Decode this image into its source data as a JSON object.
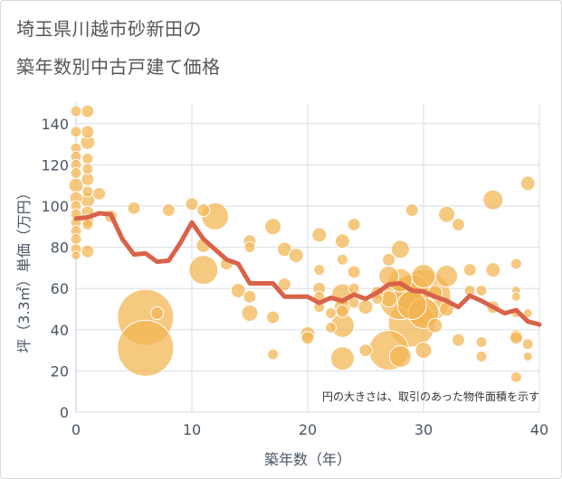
{
  "title": {
    "line1": "埼玉県川越市砂新田の",
    "line2": "築年数別中古戸建て価格"
  },
  "chart_data": {
    "type": "scatter",
    "title": "埼玉県川越市砂新田の築年数別中古戸建て価格",
    "xlabel": "築年数（年）",
    "ylabel": "坪（3.3㎡）単価（万円）",
    "annotation": "円の大きさは、取引のあった物件面積を示す",
    "xlim": [
      0,
      40
    ],
    "ylim": [
      0,
      150
    ],
    "x_ticks": [
      0,
      10,
      20,
      30,
      40
    ],
    "y_ticks": [
      0,
      20,
      40,
      60,
      80,
      100,
      120,
      140
    ],
    "grid": true,
    "colors": {
      "bubble": "#f2b450",
      "line": "#d9634a",
      "grid": "#d7dde3",
      "axis_text": "#4a5563"
    },
    "points": [
      {
        "x": 0,
        "y": 146,
        "s": 6
      },
      {
        "x": 0,
        "y": 136,
        "s": 6
      },
      {
        "x": 0,
        "y": 128,
        "s": 6
      },
      {
        "x": 0,
        "y": 124,
        "s": 6
      },
      {
        "x": 0,
        "y": 120,
        "s": 6
      },
      {
        "x": 0,
        "y": 116,
        "s": 6
      },
      {
        "x": 0,
        "y": 110,
        "s": 8
      },
      {
        "x": 0,
        "y": 104,
        "s": 7
      },
      {
        "x": 0,
        "y": 100,
        "s": 6
      },
      {
        "x": 0,
        "y": 96,
        "s": 6
      },
      {
        "x": 0,
        "y": 92,
        "s": 6
      },
      {
        "x": 0,
        "y": 88,
        "s": 6
      },
      {
        "x": 0,
        "y": 84,
        "s": 6
      },
      {
        "x": 0,
        "y": 79,
        "s": 6
      },
      {
        "x": 0,
        "y": 76,
        "s": 5
      },
      {
        "x": 1,
        "y": 146,
        "s": 7
      },
      {
        "x": 1,
        "y": 136,
        "s": 7
      },
      {
        "x": 1,
        "y": 131,
        "s": 8
      },
      {
        "x": 1,
        "y": 123,
        "s": 6
      },
      {
        "x": 1,
        "y": 118,
        "s": 6
      },
      {
        "x": 1,
        "y": 113,
        "s": 7
      },
      {
        "x": 1,
        "y": 107,
        "s": 6
      },
      {
        "x": 1,
        "y": 103,
        "s": 8
      },
      {
        "x": 1,
        "y": 97,
        "s": 7
      },
      {
        "x": 1,
        "y": 93,
        "s": 7
      },
      {
        "x": 1,
        "y": 91,
        "s": 6
      },
      {
        "x": 1,
        "y": 78,
        "s": 7
      },
      {
        "x": 2,
        "y": 106,
        "s": 7
      },
      {
        "x": 3,
        "y": 95,
        "s": 7
      },
      {
        "x": 5,
        "y": 99,
        "s": 7
      },
      {
        "x": 6,
        "y": 46,
        "s": 31
      },
      {
        "x": 6,
        "y": 31,
        "s": 31
      },
      {
        "x": 7,
        "y": 48,
        "s": 7
      },
      {
        "x": 8,
        "y": 98,
        "s": 7
      },
      {
        "x": 10,
        "y": 101,
        "s": 7
      },
      {
        "x": 11,
        "y": 98,
        "s": 7
      },
      {
        "x": 11,
        "y": 81,
        "s": 8
      },
      {
        "x": 11,
        "y": 69,
        "s": 16
      },
      {
        "x": 12,
        "y": 95,
        "s": 15
      },
      {
        "x": 13,
        "y": 72,
        "s": 7
      },
      {
        "x": 14,
        "y": 59,
        "s": 8
      },
      {
        "x": 15,
        "y": 83,
        "s": 7
      },
      {
        "x": 15,
        "y": 80,
        "s": 6
      },
      {
        "x": 15,
        "y": 56,
        "s": 7
      },
      {
        "x": 15,
        "y": 48,
        "s": 9
      },
      {
        "x": 17,
        "y": 90,
        "s": 9
      },
      {
        "x": 17,
        "y": 46,
        "s": 7
      },
      {
        "x": 17,
        "y": 28,
        "s": 6
      },
      {
        "x": 18,
        "y": 79,
        "s": 8
      },
      {
        "x": 18,
        "y": 62,
        "s": 7
      },
      {
        "x": 19,
        "y": 76,
        "s": 8
      },
      {
        "x": 20,
        "y": 38,
        "s": 8
      },
      {
        "x": 20,
        "y": 36,
        "s": 7
      },
      {
        "x": 21,
        "y": 86,
        "s": 8
      },
      {
        "x": 21,
        "y": 69,
        "s": 6
      },
      {
        "x": 21,
        "y": 60,
        "s": 7
      },
      {
        "x": 21,
        "y": 56,
        "s": 6
      },
      {
        "x": 21,
        "y": 51,
        "s": 6
      },
      {
        "x": 22,
        "y": 48,
        "s": 6
      },
      {
        "x": 22,
        "y": 41,
        "s": 6
      },
      {
        "x": 23,
        "y": 83,
        "s": 8
      },
      {
        "x": 23,
        "y": 74,
        "s": 6
      },
      {
        "x": 23,
        "y": 57,
        "s": 12
      },
      {
        "x": 23,
        "y": 51,
        "s": 9
      },
      {
        "x": 23,
        "y": 49,
        "s": 7
      },
      {
        "x": 23,
        "y": 42,
        "s": 13
      },
      {
        "x": 23,
        "y": 26,
        "s": 13
      },
      {
        "x": 24,
        "y": 91,
        "s": 7
      },
      {
        "x": 24,
        "y": 68,
        "s": 7
      },
      {
        "x": 24,
        "y": 60,
        "s": 6
      },
      {
        "x": 24,
        "y": 53,
        "s": 6
      },
      {
        "x": 25,
        "y": 51,
        "s": 8
      },
      {
        "x": 25,
        "y": 30,
        "s": 7
      },
      {
        "x": 26,
        "y": 58,
        "s": 7
      },
      {
        "x": 26,
        "y": 55,
        "s": 6
      },
      {
        "x": 27,
        "y": 74,
        "s": 7
      },
      {
        "x": 27,
        "y": 66,
        "s": 11
      },
      {
        "x": 27,
        "y": 55,
        "s": 9
      },
      {
        "x": 27,
        "y": 30,
        "s": 22
      },
      {
        "x": 28,
        "y": 79,
        "s": 10
      },
      {
        "x": 28,
        "y": 64,
        "s": 13
      },
      {
        "x": 28,
        "y": 55,
        "s": 23
      },
      {
        "x": 28,
        "y": 27,
        "s": 12
      },
      {
        "x": 29,
        "y": 98,
        "s": 7
      },
      {
        "x": 29,
        "y": 58,
        "s": 20
      },
      {
        "x": 29,
        "y": 52,
        "s": 16
      },
      {
        "x": 29,
        "y": 43,
        "s": 26
      },
      {
        "x": 30,
        "y": 66,
        "s": 13
      },
      {
        "x": 30,
        "y": 56,
        "s": 30
      },
      {
        "x": 30,
        "y": 48,
        "s": 17
      },
      {
        "x": 30,
        "y": 30,
        "s": 9
      },
      {
        "x": 31,
        "y": 58,
        "s": 8
      },
      {
        "x": 31,
        "y": 42,
        "s": 8
      },
      {
        "x": 32,
        "y": 96,
        "s": 9
      },
      {
        "x": 32,
        "y": 66,
        "s": 12
      },
      {
        "x": 32,
        "y": 50,
        "s": 8
      },
      {
        "x": 33,
        "y": 91,
        "s": 7
      },
      {
        "x": 33,
        "y": 35,
        "s": 7
      },
      {
        "x": 34,
        "y": 69,
        "s": 7
      },
      {
        "x": 34,
        "y": 59,
        "s": 6
      },
      {
        "x": 35,
        "y": 59,
        "s": 6
      },
      {
        "x": 35,
        "y": 34,
        "s": 6
      },
      {
        "x": 35,
        "y": 27,
        "s": 6
      },
      {
        "x": 36,
        "y": 103,
        "s": 11
      },
      {
        "x": 36,
        "y": 69,
        "s": 8
      },
      {
        "x": 36,
        "y": 51,
        "s": 7
      },
      {
        "x": 38,
        "y": 72,
        "s": 6
      },
      {
        "x": 38,
        "y": 59,
        "s": 5
      },
      {
        "x": 38,
        "y": 56,
        "s": 5
      },
      {
        "x": 38,
        "y": 48,
        "s": 5
      },
      {
        "x": 38,
        "y": 37,
        "s": 7
      },
      {
        "x": 38,
        "y": 36,
        "s": 7
      },
      {
        "x": 38,
        "y": 17,
        "s": 6
      },
      {
        "x": 39,
        "y": 111,
        "s": 8
      },
      {
        "x": 39,
        "y": 48,
        "s": 5
      },
      {
        "x": 39,
        "y": 33,
        "s": 6
      },
      {
        "x": 39,
        "y": 27,
        "s": 5
      }
    ],
    "line": {
      "x": [
        0,
        1,
        2,
        3,
        4,
        5,
        6,
        7,
        8,
        9,
        10,
        11,
        12,
        13,
        14,
        15,
        16,
        17,
        18,
        19,
        20,
        21,
        22,
        23,
        24,
        25,
        26,
        27,
        28,
        29,
        30,
        31,
        32,
        33,
        34,
        35,
        36,
        37,
        38,
        39,
        40
      ],
      "y": [
        94,
        94.5,
        96.5,
        96,
        84,
        76.5,
        77,
        73,
        73.5,
        82,
        92,
        84,
        79,
        74,
        72,
        62.5,
        62.5,
        62.5,
        56,
        56,
        56,
        53,
        55.5,
        54,
        57,
        55,
        58,
        62,
        62.5,
        59,
        58.5,
        56,
        54,
        51,
        56.5,
        54,
        51,
        48,
        49.5,
        44,
        42.5
      ]
    }
  }
}
